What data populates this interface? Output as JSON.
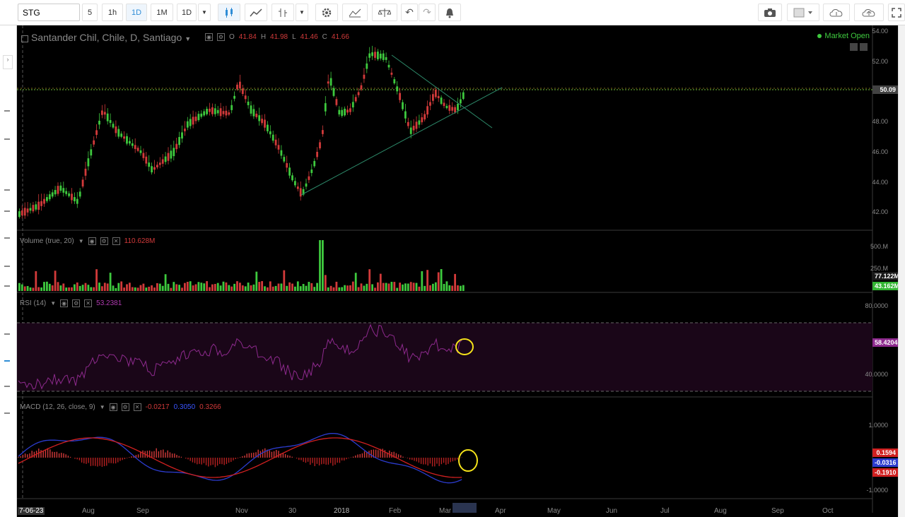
{
  "toolbar": {
    "symbol": "STG",
    "intervals": [
      "5",
      "1h",
      "1D",
      "1M",
      "1D"
    ],
    "active_interval_index": 2
  },
  "main_pane": {
    "title": "Santander Chil, Chile, D, Santiago",
    "ohlc": {
      "o_label": "O",
      "o": "41.84",
      "h_label": "H",
      "h": "41.98",
      "l_label": "L",
      "l": "41.46",
      "c_label": "C",
      "c": "41.66"
    },
    "market_status": "Market Open",
    "price_axis": [
      "54.00",
      "52.00",
      "48.00",
      "46.00",
      "44.00",
      "42.00"
    ],
    "last_price": "50.09"
  },
  "volume_pane": {
    "title": "Volume (true, 20)",
    "value": "110.628M",
    "axis": [
      "500.M",
      "250.M"
    ],
    "tags": [
      "77.122M",
      "43.162M"
    ]
  },
  "rsi_pane": {
    "title": "RSI (14)",
    "value": "53.2381",
    "axis": [
      "80.0000",
      "40.0000"
    ],
    "tag": "58.4204"
  },
  "macd_pane": {
    "title": "MACD (12, 26, close, 9)",
    "values": [
      "-0.0217",
      "0.3050",
      "0.3266"
    ],
    "axis": [
      "1.0000",
      "-1.0000"
    ],
    "tags": [
      "0.1594",
      "-0.0316",
      "-0.1910"
    ]
  },
  "time_axis": [
    "7-06-23",
    "Aug",
    "Sep",
    "Nov",
    "30",
    "2018",
    "Feb",
    "Mar",
    "Apr",
    "May",
    "Jun",
    "Jul",
    "Aug",
    "Sep",
    "Oct"
  ],
  "colors": {
    "up": "#3ec93e",
    "down": "#d23a3a",
    "rsi": "#8e2a8e",
    "macd_line": "#2c3ccf",
    "signal_line": "#d02020",
    "annotation": "#f5e31a",
    "trendline": "#2d8a6a"
  },
  "icons": [
    "camera-icon",
    "settings-icon",
    "indicators-icon",
    "compare-icon",
    "undo-icon",
    "redo-icon",
    "alert-icon",
    "cloud-save-icon",
    "cloud-load-icon",
    "fullscreen-icon"
  ]
}
